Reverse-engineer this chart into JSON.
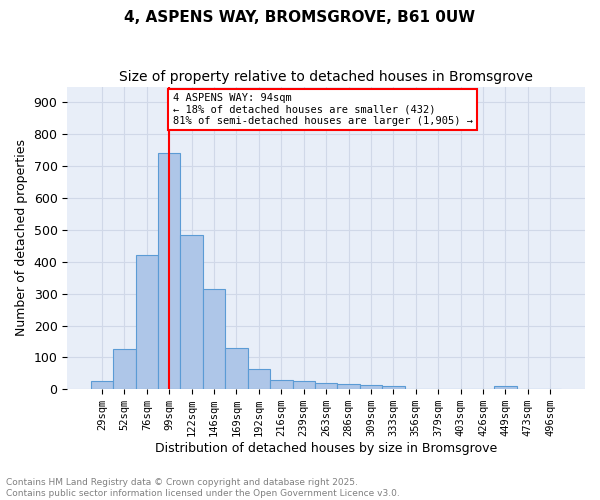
{
  "title1": "4, ASPENS WAY, BROMSGROVE, B61 0UW",
  "title2": "Size of property relative to detached houses in Bromsgrove",
  "xlabel": "Distribution of detached houses by size in Bromsgrove",
  "ylabel": "Number of detached properties",
  "bar_values": [
    25,
    125,
    420,
    740,
    485,
    315,
    130,
    65,
    30,
    25,
    20,
    15,
    12,
    10,
    0,
    0,
    0,
    0,
    10,
    0,
    0
  ],
  "bar_labels": [
    "29sqm",
    "52sqm",
    "76sqm",
    "99sqm",
    "122sqm",
    "146sqm",
    "169sqm",
    "192sqm",
    "216sqm",
    "239sqm",
    "263sqm",
    "286sqm",
    "309sqm",
    "333sqm",
    "356sqm",
    "379sqm",
    "403sqm",
    "426sqm",
    "449sqm",
    "473sqm",
    "496sqm"
  ],
  "bar_color": "#aec6e8",
  "bar_edge_color": "#5b9bd5",
  "grid_color": "#d0d8e8",
  "background_color": "#e8eef8",
  "vline_x": 3,
  "vline_color": "red",
  "annotation_text": "4 ASPENS WAY: 94sqm\n← 18% of detached houses are smaller (432)\n81% of semi-detached houses are larger (1,905) →",
  "annotation_box_color": "white",
  "annotation_box_edge_color": "red",
  "ylim": [
    0,
    950
  ],
  "yticks": [
    0,
    100,
    200,
    300,
    400,
    500,
    600,
    700,
    800,
    900
  ],
  "footer_text": "Contains HM Land Registry data © Crown copyright and database right 2025.\nContains public sector information licensed under the Open Government Licence v3.0.",
  "title_fontsize": 11,
  "subtitle_fontsize": 10,
  "axis_fontsize": 9,
  "tick_fontsize": 7.5,
  "footer_fontsize": 6.5
}
